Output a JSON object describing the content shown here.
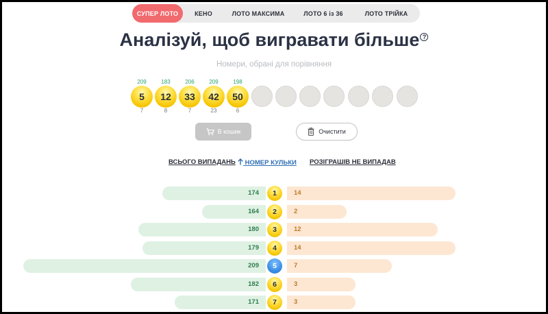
{
  "tabs": [
    "СУПЕР ЛОТО",
    "КЕНО",
    "ЛОТО МАКСИМА",
    "ЛОТО 6 із 36",
    "ЛОТО ТРІЙКА"
  ],
  "title": "Аналізуй, щоб вигравати більше",
  "help_symbol": "?",
  "subtitle": "Номери, обрані для порівняння",
  "selected": [
    {
      "num": "5",
      "top": "209",
      "bottom": "7"
    },
    {
      "num": "12",
      "top": "183",
      "bottom": "8"
    },
    {
      "num": "33",
      "top": "206",
      "bottom": "7"
    },
    {
      "num": "42",
      "top": "209",
      "bottom": "23"
    },
    {
      "num": "50",
      "top": "198",
      "bottom": "6"
    }
  ],
  "buttons": {
    "cart": "В кошик",
    "clear": "Очистити"
  },
  "sort": {
    "total": "ВСЬОГО ВИПАДАНЬ",
    "number": "НОМЕР КУЛЬКИ",
    "missed": "РОЗІГРАШІВ НЕ ВИПАДАВ"
  },
  "icons": {
    "cart": "cart-icon",
    "clear": "trash-icon",
    "sort": "arrow-up-icon"
  },
  "colors": {
    "accent": "#f16a6e",
    "total": "#dff1e3",
    "missed": "#fde7d3",
    "highlight": "#3b8fe6"
  },
  "rows": [
    {
      "num": "1",
      "total": 174,
      "missed": 14
    },
    {
      "num": "2",
      "total": 164,
      "missed": 2
    },
    {
      "num": "3",
      "total": 180,
      "missed": 12
    },
    {
      "num": "4",
      "total": 179,
      "missed": 14
    },
    {
      "num": "5",
      "total": 209,
      "missed": 7
    },
    {
      "num": "6",
      "total": 182,
      "missed": 3
    },
    {
      "num": "7",
      "total": 171,
      "missed": 3
    }
  ]
}
